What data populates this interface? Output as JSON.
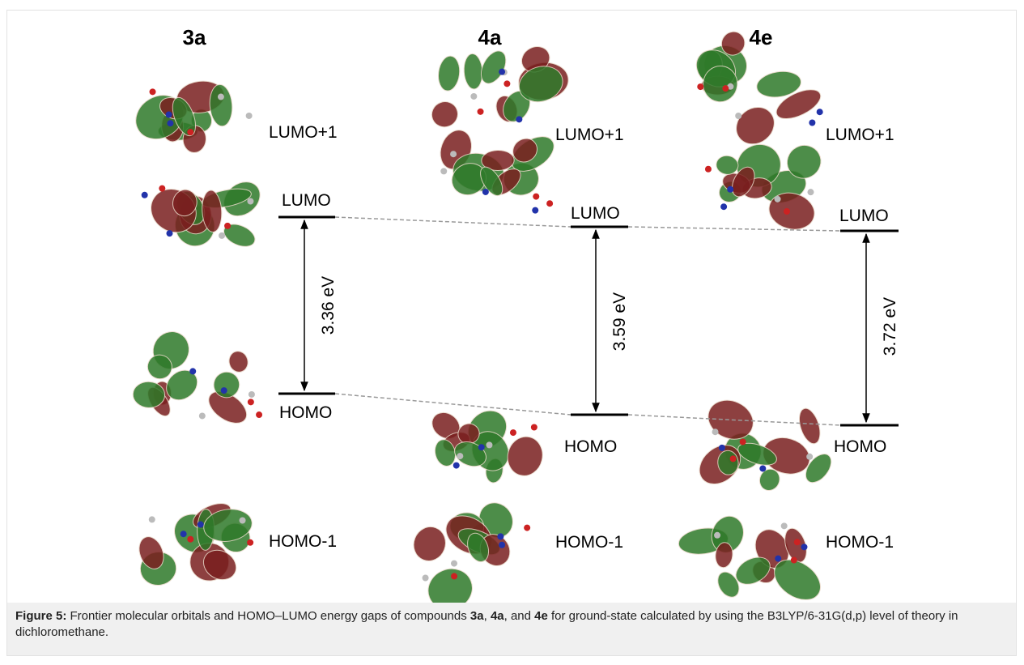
{
  "columns": [
    {
      "compound": "3a",
      "lumo_plus_1": "LUMO+1",
      "lumo": "LUMO",
      "homo": "HOMO",
      "homo_minus_1": "HOMO-1",
      "gap": "3.36 eV"
    },
    {
      "compound": "4a",
      "lumo_plus_1": "LUMO+1",
      "lumo": "LUMO",
      "homo": "HOMO",
      "homo_minus_1": "HOMO-1",
      "gap": "3.59 eV"
    },
    {
      "compound": "4e",
      "lumo_plus_1": "LUMO+1",
      "lumo": "LUMO",
      "homo": "HOMO",
      "homo_minus_1": "HOMO-1",
      "gap": "3.72 eV"
    }
  ],
  "caption": [
    {
      "text": "Figure 5:",
      "bold": true
    },
    {
      "text": " Frontier molecular orbitals and HOMO–LUMO energy gaps of compounds "
    },
    {
      "text": "3a",
      "bold": true
    },
    {
      "text": ", "
    },
    {
      "text": "4a",
      "bold": true
    },
    {
      "text": ", and "
    },
    {
      "text": "4e",
      "bold": true
    },
    {
      "text": " for ground-state calculated by using the B3LYP/6-31G(d,p) level of theory in dichloromethane."
    }
  ]
}
